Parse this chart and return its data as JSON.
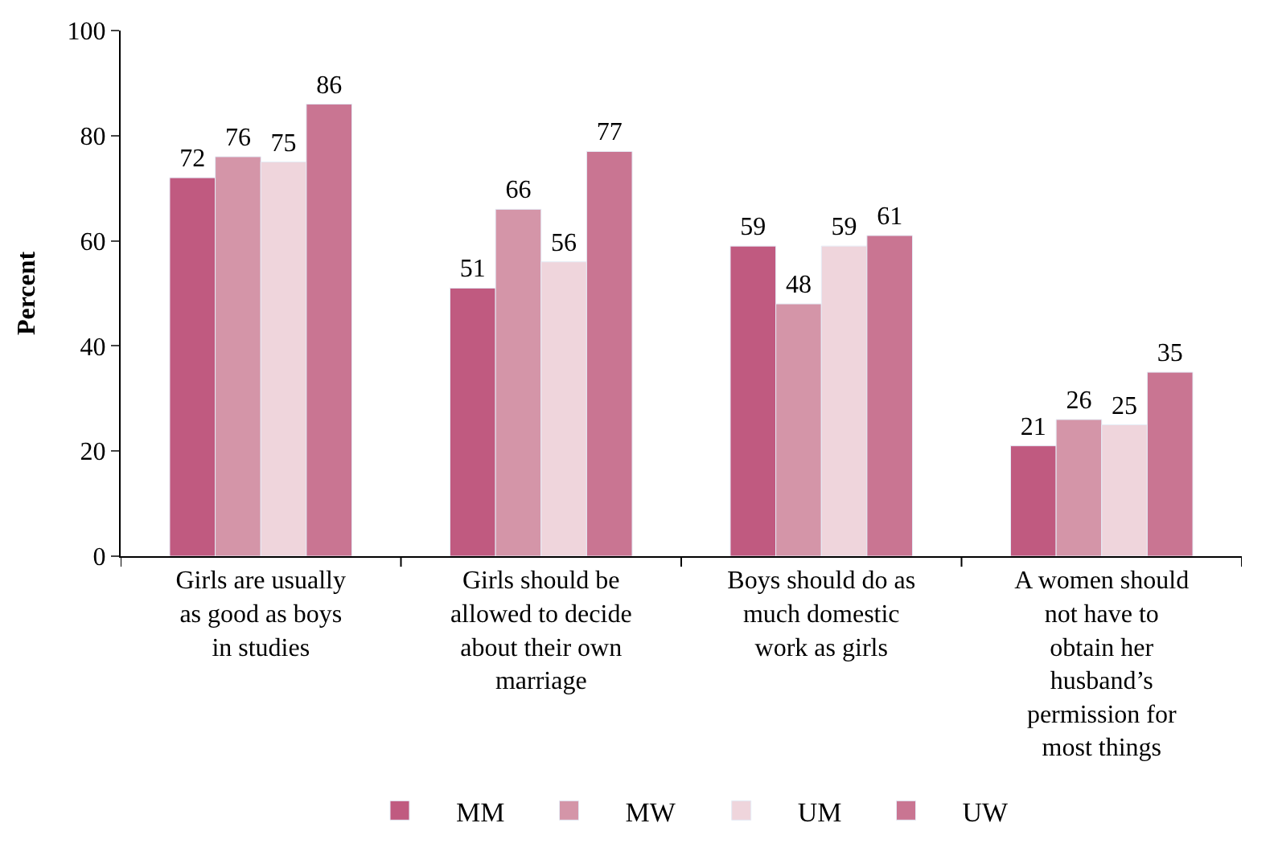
{
  "chart_data": {
    "type": "bar",
    "ylabel": "Percent",
    "categories": [
      "Girls are usually as good as boys in studies",
      "Girls should be allowed to decide about their own marriage",
      "Boys should do as much domestic work as girls",
      "A women should not have to obtain her husband’s permission for most things"
    ],
    "series": [
      {
        "name": "MM",
        "color": "#c05a80",
        "values": [
          72,
          51,
          59,
          21
        ]
      },
      {
        "name": "MW",
        "color": "#d495a8",
        "values": [
          76,
          66,
          48,
          26
        ]
      },
      {
        "name": "UM",
        "color": "#efd5dc",
        "values": [
          75,
          56,
          59,
          25
        ]
      },
      {
        "name": "UW",
        "color": "#c97592",
        "values": [
          86,
          77,
          61,
          35
        ]
      }
    ],
    "ylim": [
      0,
      100
    ],
    "yticks": [
      0,
      20,
      40,
      60,
      80,
      100
    ],
    "legend": "bottom",
    "data_labels": true
  }
}
